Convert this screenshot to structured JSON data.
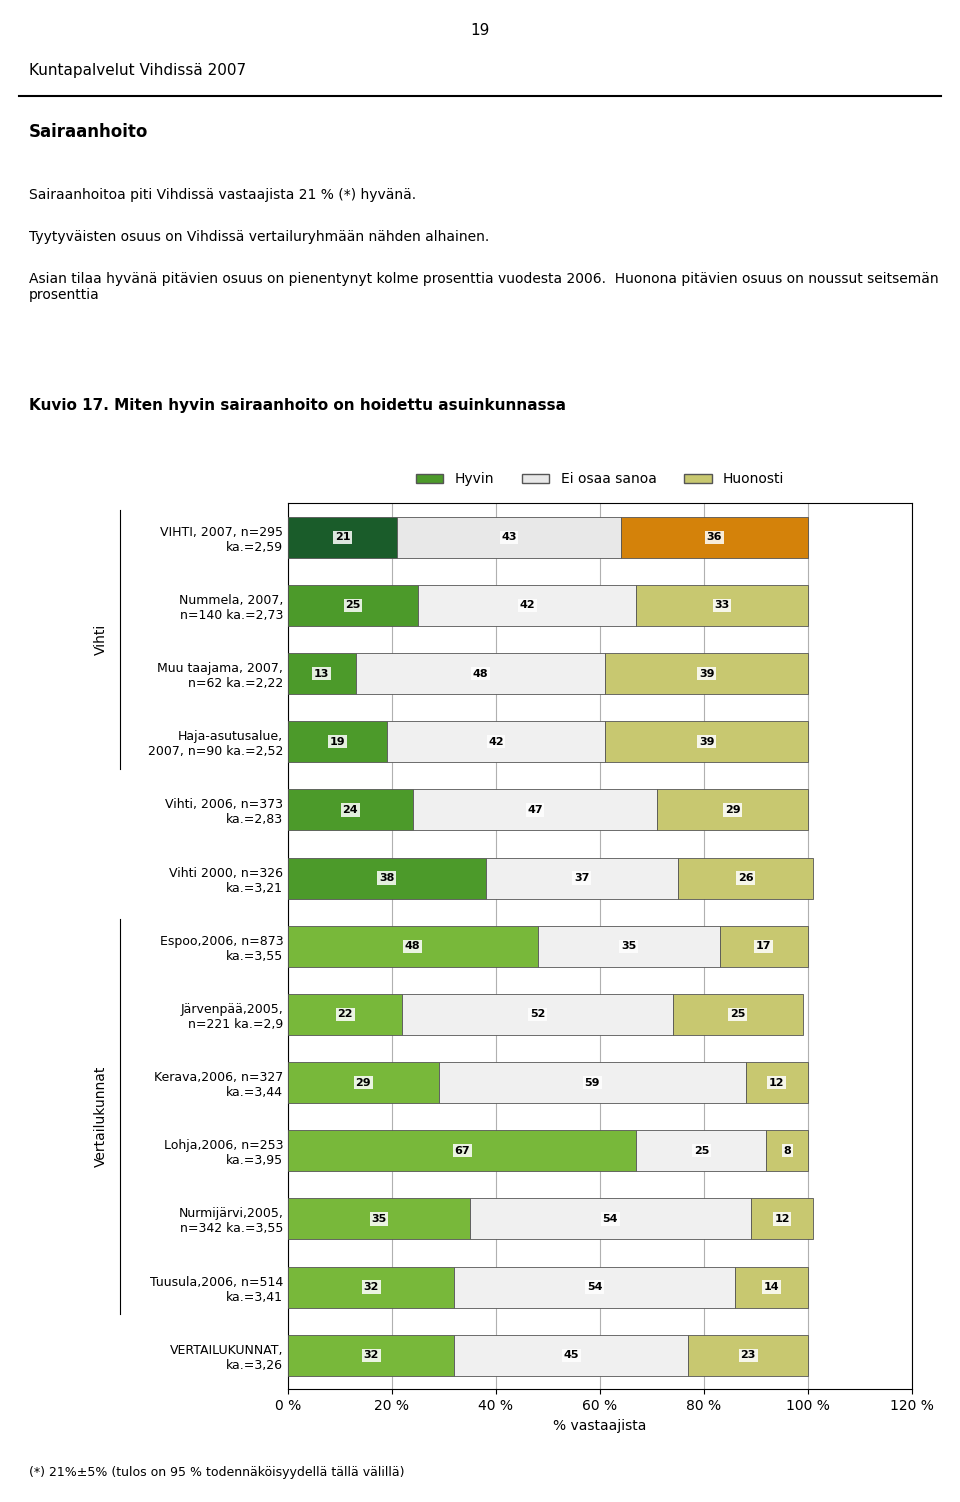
{
  "chart_data": {
    "type": "bar",
    "orientation": "horizontal",
    "stacked": true,
    "title": "Kuvio 17. Miten hyvin sairaanhoito on hoidettu asuinkunnassa",
    "subtitle": "Sairaanhoito",
    "annotations": [
      "19",
      "Kuntapalvelut Vihdissä 2007",
      "Sairaanhoitoa piti Vihdissä vastaajista 21 % (*) hyvänä.",
      "Tyytyväisten osuus on Vihdissä vertailuryhmään nähden alhainen.",
      "Asian tilaa hyvänä pitävien osuus on pienentynyt kolme prosenttia vuodesta 2006.  Huonona pitävien osuus on noussut seitsemän prosenttia",
      "(*) 21%±5% (tulos on 95 % todennäköisyydellä tällä välillä)"
    ],
    "xlabel": "% vastaajista",
    "categories": [
      "VIHTI, 2007, n=295\nka.=2,59",
      "Nummela, 2007,\nn=140 ka.=2,73",
      "Muu taajama, 2007,\nn=62 ka.=2,22",
      "Haja-asutusalue,\n2007, n=90 ka.=2,52",
      "Vihti, 2006, n=373\nka.=2,83",
      "Vihti 2000, n=326\nka.=3,21",
      "Espoo,2006, n=873\nka.=3,55",
      "Järvenpää,2005,\nn=221 ka.=2,9",
      "Kerava,2006, n=327\nka.=3,44",
      "Lohja,2006, n=253\nka.=3,95",
      "Nurmijärvi,2005,\nn=342 ka.=3,55",
      "Tuusula,2006, n=514\nka.=3,41",
      "VERTAILUKUNNAT,\nka.=3,26"
    ],
    "groups": [
      {
        "label": "Vihti",
        "categories": [
          "VIHTI, 2007, n=295\nka.=2,59",
          "Nummela, 2007,\nn=140 ka.=2,73",
          "Muu taajama, 2007,\nn=62 ka.=2,22",
          "Haja-asutusalue,\n2007, n=90 ka.=2,52"
        ]
      },
      {
        "label": "Vertailukunnat",
        "categories": [
          "Espoo,2006, n=873\nka.=3,55",
          "Järvenpää,2005,\nn=221 ka.=2,9",
          "Kerava,2006, n=327\nka.=3,44",
          "Lohja,2006, n=253\nka.=3,95",
          "Nurmijärvi,2005,\nn=342 ka.=3,55",
          "Tuusula,2006, n=514\nka.=3,41"
        ]
      }
    ],
    "series": [
      {
        "name": "Hyvin",
        "color": "#4c9a2a",
        "colors": [
          "#1a5c2a",
          "#4c9a2a",
          "#4c9a2a",
          "#4c9a2a",
          "#4c9a2a",
          "#4c9a2a",
          "#78b83a",
          "#78b83a",
          "#78b83a",
          "#78b83a",
          "#78b83a",
          "#78b83a",
          "#78b83a"
        ],
        "values": [
          21,
          25,
          13,
          19,
          24,
          38,
          48,
          22,
          29,
          67,
          35,
          32,
          32
        ]
      },
      {
        "name": "Ei osaa sanoa",
        "color": "#e8e8e8",
        "colors": [
          "#e8e8e8",
          "#f0f0f0",
          "#f0f0f0",
          "#f0f0f0",
          "#f0f0f0",
          "#f0f0f0",
          "#f0f0f0",
          "#f0f0f0",
          "#f0f0f0",
          "#f0f0f0",
          "#f0f0f0",
          "#f0f0f0",
          "#f0f0f0"
        ],
        "values": [
          43,
          42,
          48,
          42,
          47,
          37,
          35,
          52,
          59,
          25,
          54,
          54,
          45
        ]
      },
      {
        "name": "Huonosti",
        "color": "#c8c870",
        "colors": [
          "#d4820a",
          "#c8c870",
          "#c8c870",
          "#c8c870",
          "#c8c870",
          "#c8c870",
          "#c8c870",
          "#c8c870",
          "#c8c870",
          "#c8c870",
          "#c8c870",
          "#c8c870",
          "#c8c870"
        ],
        "values": [
          36,
          33,
          39,
          39,
          29,
          26,
          17,
          25,
          12,
          8,
          12,
          14,
          23
        ]
      }
    ],
    "xlim": [
      0,
      120
    ],
    "xticks": [
      {
        "value": 0,
        "label": "0 %"
      },
      {
        "value": 20,
        "label": "20 %"
      },
      {
        "value": 40,
        "label": "40 %"
      },
      {
        "value": 60,
        "label": "60 %"
      },
      {
        "value": 80,
        "label": "80 %"
      },
      {
        "value": 100,
        "label": "100 %"
      },
      {
        "value": 120,
        "label": "120 %"
      }
    ],
    "grid": true,
    "legend": "lower center",
    "data_labels": true
  }
}
